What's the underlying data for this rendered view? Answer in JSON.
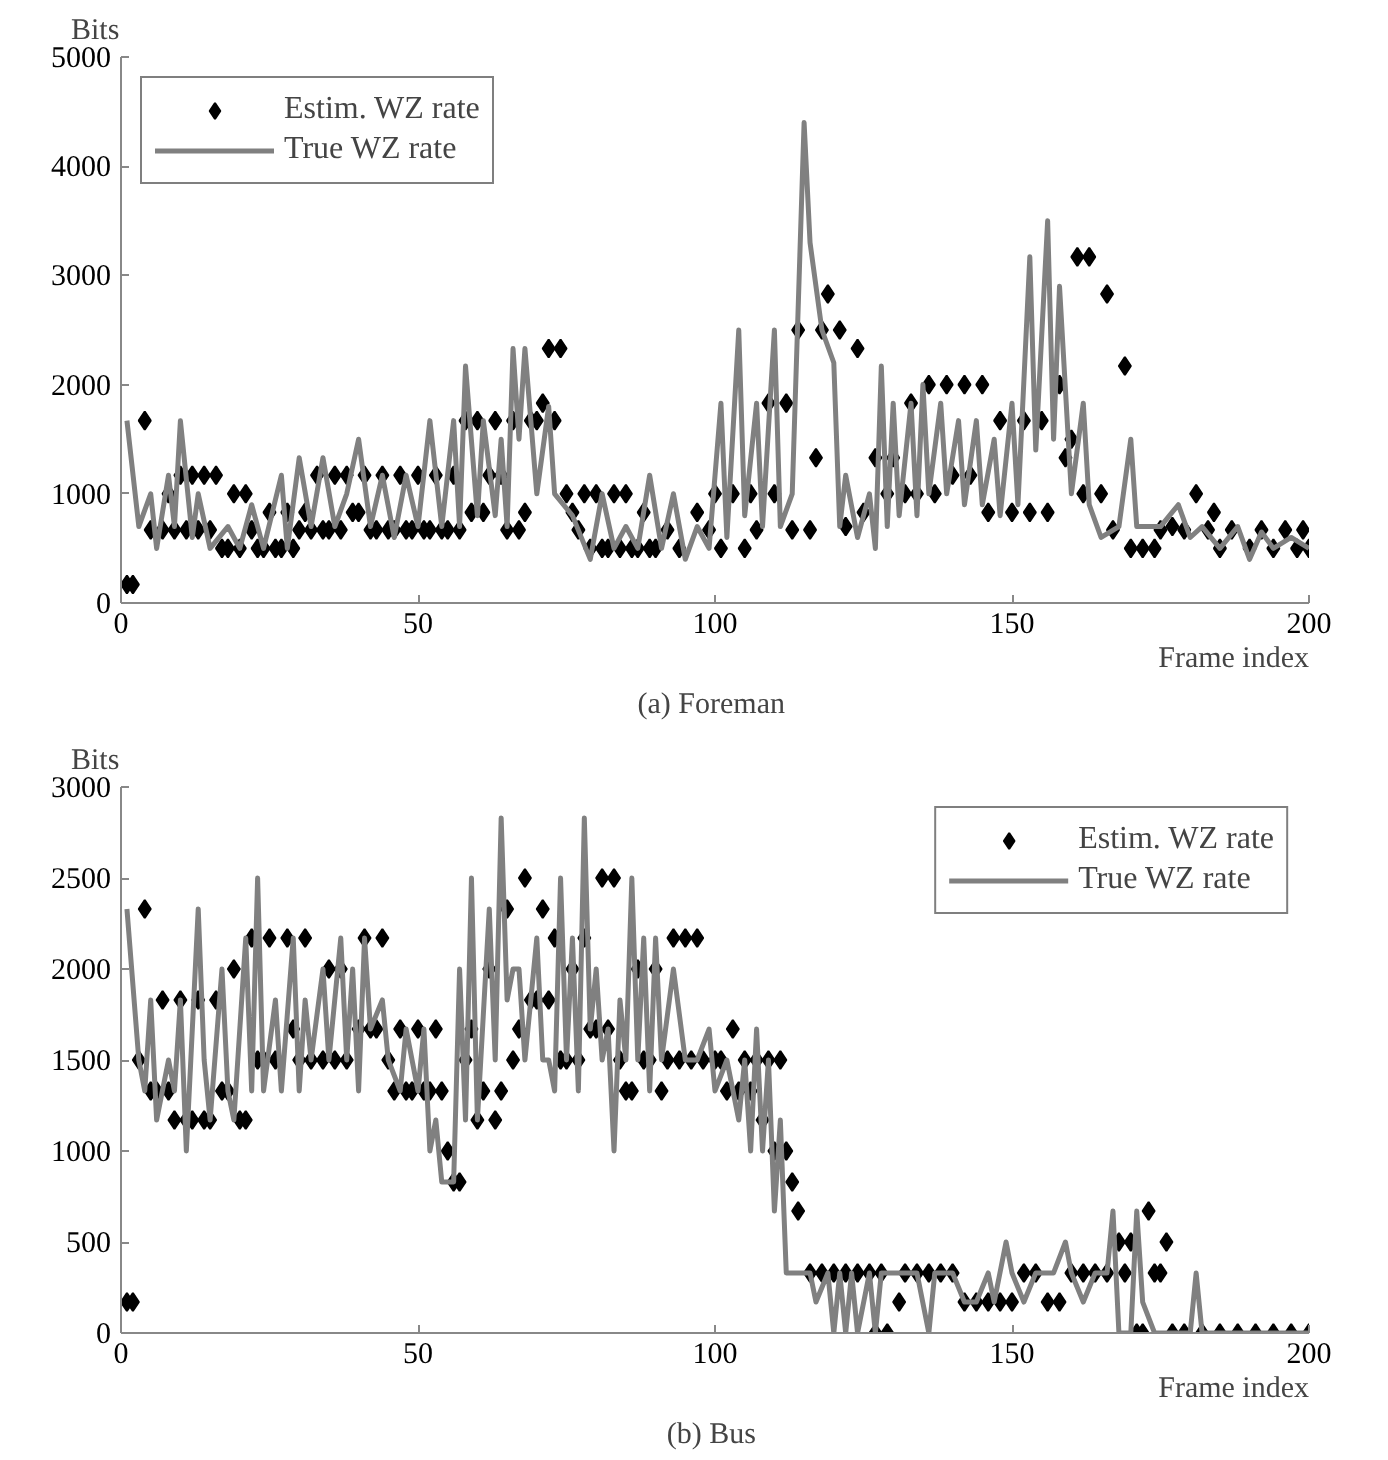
{
  "chart_data": [
    {
      "type": "line",
      "title": "(a)  Foreman",
      "xlabel": "Frame index",
      "ylabel": "Bits",
      "xlim": [
        0,
        200
      ],
      "ylim": [
        0,
        5000
      ],
      "xticks": [
        0,
        50,
        100,
        150,
        200
      ],
      "yticks": [
        0,
        1000,
        2000,
        3000,
        4000,
        5000
      ],
      "grid": false,
      "legend": "top left",
      "series": [
        {
          "name": "Estim. WZ rate",
          "type": "scatter",
          "marker": "diamond",
          "color": "#000000",
          "x": [
            1,
            2,
            4,
            5,
            7,
            8,
            9,
            10,
            11,
            12,
            13,
            14,
            15,
            16,
            17,
            18,
            19,
            20,
            21,
            22,
            23,
            24,
            25,
            26,
            27,
            28,
            29,
            30,
            31,
            32,
            33,
            34,
            35,
            36,
            37,
            38,
            39,
            40,
            41,
            42,
            43,
            44,
            45,
            46,
            47,
            48,
            49,
            50,
            51,
            52,
            53,
            54,
            55,
            56,
            57,
            58,
            59,
            60,
            61,
            62,
            63,
            64,
            65,
            66,
            67,
            68,
            69,
            70,
            71,
            72,
            73,
            74,
            75,
            76,
            77,
            78,
            79,
            80,
            81,
            82,
            83,
            84,
            85,
            86,
            87,
            88,
            89,
            90,
            92,
            94,
            97,
            99,
            100,
            101,
            103,
            105,
            106,
            107,
            109,
            110,
            112,
            113,
            114,
            116,
            117,
            118,
            119,
            121,
            122,
            124,
            125,
            127,
            129,
            130,
            132,
            133,
            134,
            136,
            137,
            139,
            140,
            142,
            143,
            145,
            146,
            148,
            150,
            152,
            153,
            155,
            156,
            158,
            159,
            160,
            161,
            162,
            163,
            165,
            166,
            167,
            169,
            170,
            172,
            174,
            175,
            177,
            179,
            181,
            183,
            184,
            185,
            187,
            190,
            192,
            194,
            196,
            198,
            199,
            200
          ],
          "values": [
            170,
            170,
            1670,
            670,
            670,
            1000,
            670,
            1170,
            670,
            1170,
            670,
            1170,
            670,
            1170,
            500,
            500,
            1000,
            500,
            1000,
            670,
            500,
            500,
            830,
            500,
            500,
            830,
            500,
            670,
            830,
            670,
            1170,
            670,
            670,
            1170,
            670,
            1170,
            830,
            830,
            1170,
            670,
            670,
            1170,
            670,
            670,
            1170,
            670,
            670,
            1170,
            670,
            670,
            1170,
            670,
            670,
            1170,
            670,
            1670,
            830,
            1670,
            830,
            1170,
            1670,
            1170,
            670,
            1670,
            670,
            830,
            1670,
            1670,
            1830,
            2330,
            1670,
            2330,
            1000,
            830,
            670,
            1000,
            500,
            1000,
            500,
            500,
            1000,
            500,
            1000,
            500,
            500,
            830,
            500,
            500,
            670,
            500,
            830,
            670,
            1000,
            500,
            1000,
            500,
            1000,
            670,
            1830,
            1000,
            1830,
            670,
            2500,
            670,
            1330,
            2500,
            2830,
            2500,
            700,
            2330,
            830,
            1330,
            1000,
            1330,
            1000,
            1830,
            1000,
            2000,
            1000,
            2000,
            1170,
            2000,
            1170,
            2000,
            830,
            1670,
            830,
            1670,
            830,
            1670,
            830,
            2000,
            1330,
            1500,
            3170,
            1000,
            3170,
            1000,
            2830,
            670,
            2170,
            500,
            500,
            500,
            670,
            700,
            670,
            1000,
            670,
            830,
            500,
            670,
            500,
            670,
            500,
            670,
            500,
            670,
            500
          ]
        },
        {
          "name": "True WZ rate",
          "color": "#808080",
          "x": [
            1,
            3,
            5,
            6,
            8,
            9,
            10,
            12,
            13,
            15,
            18,
            20,
            22,
            24,
            27,
            28,
            30,
            32,
            34,
            36,
            38,
            40,
            42,
            44,
            46,
            48,
            50,
            52,
            54,
            56,
            57,
            58,
            60,
            61,
            63,
            64,
            65,
            66,
            67,
            68,
            70,
            72,
            73,
            76,
            79,
            81,
            83,
            85,
            87,
            89,
            91,
            93,
            95,
            97,
            99,
            101,
            102,
            104,
            105,
            107,
            108,
            110,
            111,
            113,
            115,
            116,
            118,
            120,
            121,
            122,
            124,
            126,
            127,
            128,
            129,
            130,
            131,
            133,
            134,
            135,
            136,
            138,
            139,
            141,
            142,
            144,
            145,
            147,
            148,
            150,
            151,
            153,
            154,
            156,
            157,
            158,
            160,
            162,
            163,
            165,
            168,
            170,
            171,
            175,
            178,
            180,
            182,
            185,
            188,
            190,
            192,
            194,
            197,
            200
          ],
          "values": [
            1670,
            700,
            1000,
            500,
            1170,
            700,
            1670,
            600,
            1000,
            500,
            700,
            500,
            900,
            500,
            1170,
            500,
            1330,
            700,
            1330,
            700,
            1000,
            1500,
            700,
            1170,
            600,
            1170,
            700,
            1670,
            700,
            1670,
            700,
            2170,
            800,
            1670,
            800,
            1500,
            700,
            2330,
            1500,
            2330,
            1000,
            1800,
            1000,
            800,
            400,
            1000,
            500,
            700,
            500,
            1170,
            500,
            1000,
            400,
            700,
            500,
            1830,
            600,
            2500,
            800,
            1830,
            700,
            2500,
            700,
            1000,
            4400,
            3300,
            2500,
            2200,
            700,
            1170,
            600,
            1000,
            500,
            2170,
            700,
            1830,
            800,
            1830,
            800,
            2000,
            1000,
            1830,
            1000,
            1670,
            900,
            1670,
            900,
            1500,
            800,
            1830,
            900,
            3170,
            1400,
            3500,
            1500,
            2900,
            1000,
            1830,
            900,
            600,
            700,
            1500,
            700,
            700,
            900,
            600,
            700,
            500,
            700,
            400,
            650,
            500,
            600,
            500
          ]
        }
      ]
    },
    {
      "type": "line",
      "title": "(b)  Bus",
      "xlabel": "Frame index",
      "ylabel": "Bits",
      "xlim": [
        0,
        200
      ],
      "ylim": [
        0,
        3000
      ],
      "xticks": [
        0,
        50,
        100,
        150,
        200
      ],
      "yticks": [
        0,
        500,
        1000,
        1500,
        2000,
        2500,
        3000
      ],
      "grid": false,
      "legend": "top right",
      "series": [
        {
          "name": "Estim. WZ rate",
          "type": "scatter",
          "marker": "diamond",
          "color": "#000000",
          "x": [
            1,
            2,
            3,
            4,
            5,
            6,
            7,
            8,
            9,
            10,
            11,
            12,
            13,
            14,
            15,
            16,
            17,
            18,
            19,
            20,
            21,
            22,
            23,
            24,
            25,
            26,
            28,
            29,
            30,
            31,
            32,
            34,
            35,
            36,
            37,
            38,
            40,
            41,
            42,
            43,
            44,
            45,
            46,
            47,
            48,
            49,
            50,
            51,
            52,
            53,
            54,
            55,
            56,
            57,
            58,
            59,
            60,
            61,
            62,
            63,
            64,
            65,
            66,
            67,
            68,
            69,
            70,
            71,
            72,
            73,
            74,
            75,
            76,
            77,
            78,
            79,
            80,
            81,
            82,
            83,
            84,
            85,
            86,
            87,
            88,
            89,
            90,
            91,
            92,
            93,
            94,
            95,
            96,
            97,
            98,
            100,
            101,
            102,
            103,
            104,
            105,
            106,
            107,
            108,
            109,
            110,
            111,
            112,
            113,
            114,
            116,
            118,
            120,
            122,
            124,
            126,
            127,
            128,
            129,
            131,
            132,
            134,
            136,
            138,
            140,
            142,
            144,
            146,
            148,
            150,
            152,
            154,
            156,
            158,
            160,
            162,
            164,
            166,
            168,
            169,
            170,
            171,
            172,
            173,
            174,
            175,
            176,
            177,
            179,
            182,
            185,
            188,
            191,
            194,
            197,
            200
          ],
          "values": [
            170,
            170,
            1500,
            2330,
            1330,
            1330,
            1830,
            1330,
            1170,
            1830,
            1170,
            1170,
            1830,
            1170,
            1170,
            1830,
            1330,
            1330,
            2000,
            1170,
            1170,
            2170,
            1500,
            1500,
            2170,
            1500,
            2170,
            1670,
            1500,
            2170,
            1500,
            1500,
            2000,
            1500,
            2000,
            1500,
            1670,
            2170,
            1670,
            1670,
            2170,
            1500,
            1330,
            1670,
            1330,
            1330,
            1670,
            1330,
            1330,
            1670,
            1330,
            1000,
            830,
            830,
            1500,
            1670,
            1170,
            1330,
            2000,
            1170,
            1330,
            2330,
            1500,
            1670,
            2500,
            1830,
            1830,
            2330,
            1830,
            2170,
            1500,
            1500,
            2000,
            1500,
            2170,
            1670,
            1670,
            2500,
            1670,
            2500,
            1500,
            1330,
            1330,
            2000,
            1500,
            1500,
            2000,
            1330,
            1500,
            2170,
            1500,
            2170,
            1500,
            2170,
            1500,
            1500,
            1500,
            1330,
            1670,
            1330,
            1500,
            1330,
            1500,
            1170,
            1500,
            1000,
            1500,
            1000,
            830,
            670,
            330,
            330,
            330,
            330,
            330,
            330,
            0,
            330,
            0,
            170,
            330,
            330,
            330,
            330,
            330,
            170,
            170,
            170,
            170,
            170,
            330,
            330,
            170,
            170,
            330,
            330,
            330,
            330,
            500,
            330,
            500,
            0,
            0,
            670,
            330,
            330,
            500,
            0,
            0,
            0,
            0,
            0,
            0,
            0,
            0,
            0
          ]
        },
        {
          "name": "True WZ rate",
          "color": "#808080",
          "x": [
            1,
            3,
            4,
            5,
            6,
            8,
            9,
            10,
            11,
            13,
            14,
            15,
            17,
            18,
            19,
            21,
            22,
            23,
            24,
            26,
            27,
            29,
            30,
            31,
            32,
            34,
            35,
            37,
            38,
            39,
            40,
            41,
            42,
            44,
            45,
            47,
            48,
            50,
            51,
            52,
            53,
            54,
            56,
            57,
            58,
            59,
            60,
            62,
            63,
            64,
            65,
            66,
            67,
            68,
            70,
            71,
            72,
            73,
            74,
            75,
            76,
            77,
            78,
            79,
            80,
            81,
            82,
            83,
            84,
            85,
            86,
            87,
            88,
            89,
            90,
            91,
            93,
            95,
            97,
            99,
            100,
            102,
            104,
            105,
            106,
            107,
            108,
            109,
            110,
            111,
            112,
            116,
            117,
            119,
            120,
            121,
            122,
            123,
            124,
            126,
            127,
            128,
            130,
            132,
            134,
            136,
            137,
            140,
            142,
            144,
            146,
            147,
            149,
            150,
            152,
            154,
            157,
            159,
            160,
            162,
            164,
            166,
            167,
            168,
            170,
            171,
            172,
            174,
            177,
            180,
            181,
            182,
            200
          ],
          "values": [
            2330,
            1500,
            1330,
            1830,
            1170,
            1500,
            1330,
            1830,
            1000,
            2330,
            1500,
            1170,
            2000,
            1330,
            1170,
            2170,
            1330,
            2500,
            1330,
            1830,
            1330,
            2170,
            1330,
            1830,
            1500,
            2000,
            1500,
            2170,
            1500,
            2000,
            1330,
            2170,
            1670,
            1830,
            1500,
            1330,
            1670,
            1330,
            1670,
            1000,
            1170,
            830,
            830,
            2000,
            1170,
            2500,
            1170,
            2330,
            1500,
            2830,
            1830,
            2000,
            2000,
            1500,
            2170,
            1500,
            1500,
            1330,
            2500,
            1500,
            2170,
            1330,
            2830,
            1670,
            2000,
            1500,
            1670,
            1000,
            1830,
            1500,
            2500,
            1500,
            2170,
            1330,
            2170,
            1500,
            2000,
            1500,
            1500,
            1670,
            1330,
            1500,
            1170,
            1500,
            1000,
            1670,
            1000,
            1500,
            670,
            1170,
            330,
            330,
            170,
            330,
            0,
            330,
            0,
            330,
            0,
            330,
            0,
            330,
            330,
            330,
            330,
            0,
            330,
            330,
            170,
            170,
            330,
            170,
            500,
            330,
            170,
            330,
            330,
            500,
            330,
            170,
            330,
            330,
            670,
            0,
            0,
            670,
            170,
            0,
            0,
            0,
            330,
            0,
            0
          ]
        }
      ]
    }
  ]
}
